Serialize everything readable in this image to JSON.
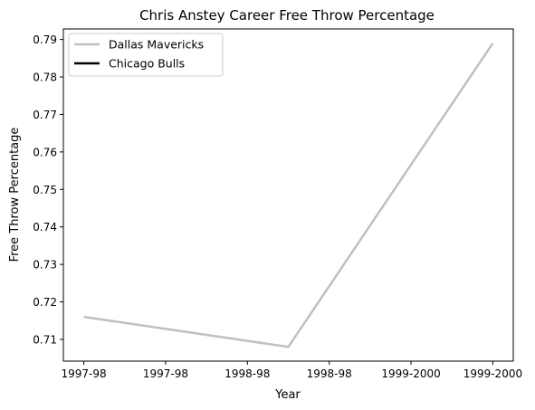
{
  "chart_data": {
    "type": "line",
    "title": "Chris Anstey Career Free Throw Percentage",
    "xlabel": "Year",
    "ylabel": "Free Throw Percentage",
    "x_ticks": [
      "1997-98",
      "1997-98",
      "1998-98",
      "1998-98",
      "1999-2000",
      "1999-2000"
    ],
    "x_tick_positions": [
      0,
      0.5,
      1,
      1.5,
      2,
      2.5
    ],
    "x_range": [
      -0.125,
      2.625
    ],
    "ylim": [
      0.7042,
      0.7928
    ],
    "y_ticks": [
      0.71,
      0.72,
      0.73,
      0.74,
      0.75,
      0.76,
      0.77,
      0.78,
      0.79
    ],
    "y_tick_labels": [
      "0.71",
      "0.72",
      "0.73",
      "0.74",
      "0.75",
      "0.76",
      "0.77",
      "0.78",
      "0.79"
    ],
    "grid": false,
    "legend_position": "top-left",
    "series": [
      {
        "name": "Dallas Mavericks",
        "color": "#c0c0c0",
        "x": [
          0,
          1.25,
          2.5
        ],
        "y": [
          0.716,
          0.708,
          0.789
        ]
      },
      {
        "name": "Chicago Bulls",
        "color": "#000000",
        "x": [],
        "y": []
      }
    ]
  }
}
